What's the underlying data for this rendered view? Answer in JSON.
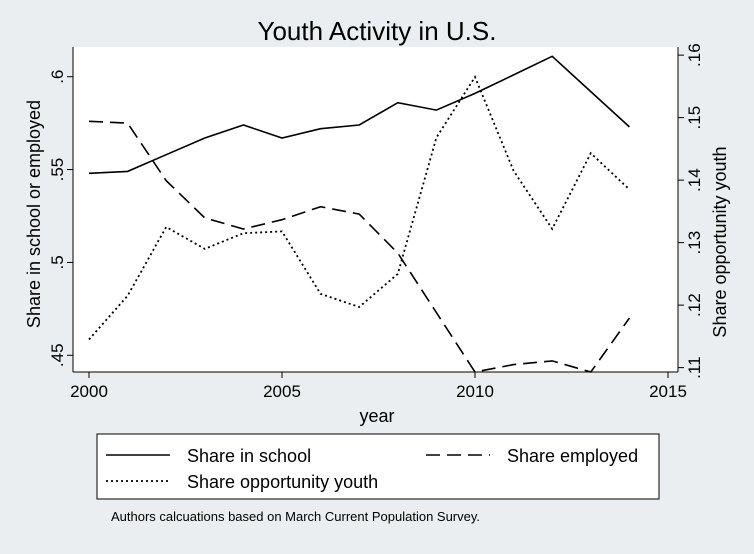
{
  "chart_data": {
    "type": "line",
    "title": "Youth Activity in U.S.",
    "xlabel": "year",
    "ylabel_left": "Share in school or employed",
    "ylabel_right": "Share opportunity youth",
    "x": [
      2000,
      2001,
      2002,
      2003,
      2004,
      2005,
      2006,
      2007,
      2008,
      2009,
      2010,
      2011,
      2012,
      2013,
      2014
    ],
    "xlim": [
      2000,
      2015
    ],
    "ylim_left": [
      0.441,
      0.616
    ],
    "ylim_right": [
      0.1093,
      0.1613
    ],
    "x_ticks": [
      2000,
      2005,
      2010,
      2015
    ],
    "x_tick_labels": [
      "2000",
      "2005",
      "2010",
      "2015"
    ],
    "y_ticks_left": [
      0.45,
      0.5,
      0.55,
      0.6
    ],
    "y_tick_labels_left": [
      ".45",
      ".5",
      ".55",
      ".6"
    ],
    "y_ticks_right": [
      0.11,
      0.12,
      0.13,
      0.14,
      0.15,
      0.16
    ],
    "y_tick_labels_right": [
      ".11",
      ".12",
      ".13",
      ".14",
      ".15",
      ".16"
    ],
    "grid": false,
    "legend_placement": "bottom",
    "series": [
      {
        "name": "Share in school",
        "axis": "left",
        "style": "solid",
        "values": [
          0.548,
          0.549,
          0.558,
          0.567,
          0.574,
          0.567,
          0.572,
          0.574,
          0.586,
          0.582,
          0.591,
          0.601,
          0.611,
          0.592,
          0.573
        ]
      },
      {
        "name": "Share employed",
        "axis": "left",
        "style": "dashed",
        "values": [
          0.576,
          0.575,
          0.544,
          0.524,
          0.518,
          0.523,
          0.53,
          0.526,
          0.505,
          0.473,
          0.441,
          0.445,
          0.447,
          0.441,
          0.47
        ]
      },
      {
        "name": "Share opportunity youth",
        "axis": "right",
        "style": "dotted",
        "values": [
          0.1145,
          0.1215,
          0.1325,
          0.129,
          0.1315,
          0.1318,
          0.1218,
          0.1197,
          0.125,
          0.1468,
          0.1565,
          0.1415,
          0.1322,
          0.1443,
          0.1385
        ]
      }
    ],
    "note": "Authors calcuations based on March Current Population Survey.",
    "colors": {
      "background": "#eaeef0",
      "plot_region": "#ffffff",
      "lines": "#000000"
    }
  }
}
